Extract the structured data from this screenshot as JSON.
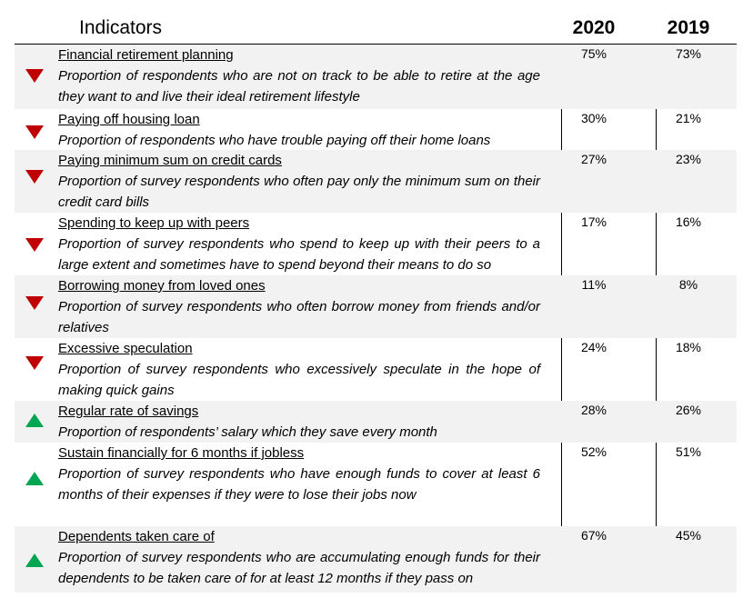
{
  "header": {
    "indicators": "Indicators",
    "year1": "2020",
    "year2": "2019"
  },
  "rows": [
    {
      "title": "Financial retirement planning",
      "desc": "Proportion of respondents who are not on track to be able to retire at the age they want to and live their ideal retirement lifestyle",
      "v2020": "75%",
      "v2019": "73%",
      "trend": "down"
    },
    {
      "title": "Paying off housing loan",
      "desc": "Proportion of respondents who have trouble paying off their home loans",
      "v2020": "30%",
      "v2019": "21%",
      "trend": "down"
    },
    {
      "title": "Paying minimum sum on credit cards",
      "desc": "Proportion of survey respondents who often pay only the minimum sum on their credit card bills",
      "v2020": "27%",
      "v2019": "23%",
      "trend": "down"
    },
    {
      "title": "Spending to keep up with peers",
      "desc": "Proportion of survey respondents who spend to keep up with their peers to a large extent and sometimes have to spend beyond their means to do so",
      "v2020": "17%",
      "v2019": "16%",
      "trend": "down"
    },
    {
      "title": "Borrowing money from loved ones",
      "desc": "Proportion of survey respondents who often borrow money from friends and/or relatives",
      "v2020": "11%",
      "v2019": "8%",
      "trend": "down"
    },
    {
      "title": "Excessive speculation",
      "desc": "Proportion of survey respondents who excessively speculate in the hope of making quick gains",
      "v2020": "24%",
      "v2019": "18%",
      "trend": "down"
    },
    {
      "title": "Regular rate of savings",
      "desc": "Proportion of respondents’ salary which they save every month",
      "v2020": "28%",
      "v2019": "26%",
      "trend": "up"
    },
    {
      "title": "Sustain financially for 6 months if jobless",
      "desc": "Proportion of survey respondents who have enough funds to cover at least 6 months of their expenses if they were to lose their jobs now",
      "v2020": "52%",
      "v2019": "51%",
      "trend": "up"
    },
    {
      "title": "Dependents taken care of",
      "desc": "Proportion of survey respondents who are accumulating enough funds for their dependents to be taken care of for at least 12 months if they pass on",
      "v2020": "67%",
      "v2019": "45%",
      "trend": "up"
    }
  ],
  "colors": {
    "down": "#c00000",
    "up": "#00a651",
    "shade": "#f2f2f2"
  }
}
